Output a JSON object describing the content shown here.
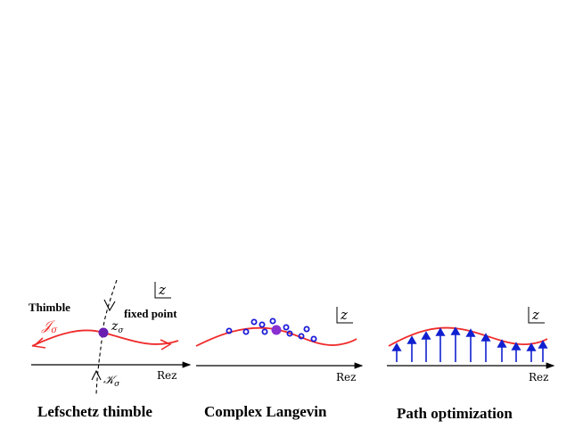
{
  "colors": {
    "curve": "#ef2b2b",
    "fixed_point": "#6a1fb0",
    "sample": "#1a1ad8",
    "arrow": "#1020d0",
    "axis": "#000000"
  },
  "panels": {
    "thimble": {
      "caption": "Lefschetz thimble",
      "plane_label": "z",
      "axis_label": "Rez",
      "thimble_label": "Thimble",
      "j_label": "𝒥",
      "j_sub": "σ",
      "k_label": "𝒦",
      "k_sub": "σ",
      "z_label": "z",
      "z_sub": "σ",
      "fixed_point_label": "fixed point"
    },
    "langevin": {
      "caption": "Complex Langevin",
      "plane_label": "z",
      "axis_label": "Rez"
    },
    "pathopt": {
      "caption": "Path optimization",
      "plane_label": "z",
      "axis_label": "Rez"
    }
  }
}
